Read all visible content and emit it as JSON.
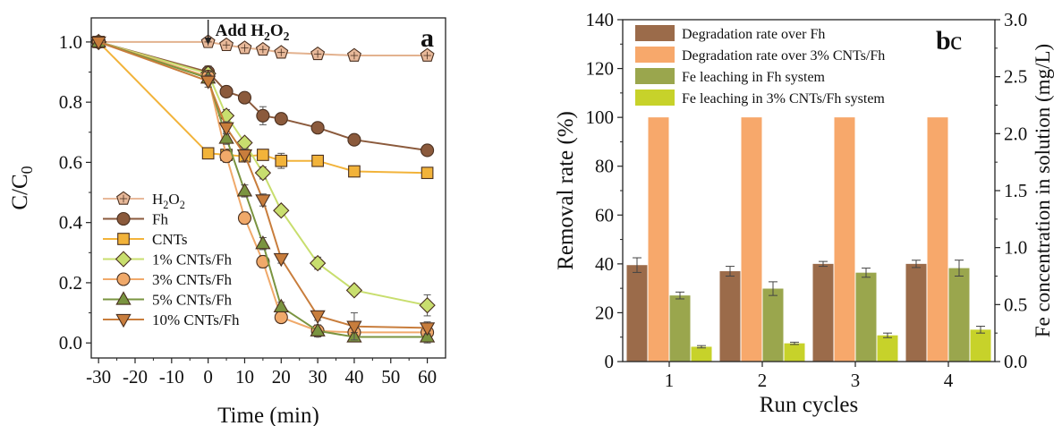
{
  "chart_data": [
    {
      "type": "line",
      "panel_label": "a",
      "annotation": "Add H2O2",
      "xlabel": "Time (min)",
      "ylabel": "C/C0",
      "xlim": [
        -32,
        65
      ],
      "ylim": [
        -0.05,
        1.08
      ],
      "x_ticks": [
        -30,
        -20,
        -10,
        0,
        10,
        20,
        30,
        40,
        50,
        60
      ],
      "y_ticks": [
        0.0,
        0.2,
        0.4,
        0.6,
        0.8,
        1.0
      ],
      "legend_placement": "bottom-left",
      "series": [
        {
          "name": "H2O2",
          "color": "#e8b99a",
          "marker": "pentagon",
          "points": [
            [
              -30,
              1.0
            ],
            [
              0,
              1.0
            ],
            [
              5,
              0.99
            ],
            [
              10,
              0.98
            ],
            [
              15,
              0.975
            ],
            [
              20,
              0.965
            ],
            [
              30,
              0.96
            ],
            [
              40,
              0.955
            ],
            [
              60,
              0.955
            ]
          ],
          "errors": [
            0,
            0,
            0.01,
            0.01,
            0.01,
            0.01,
            0.01,
            0.01,
            0.01
          ]
        },
        {
          "name": "Fh",
          "color": "#8b5a3c",
          "marker": "circle",
          "points": [
            [
              -30,
              1.0
            ],
            [
              0,
              0.9
            ],
            [
              5,
              0.835
            ],
            [
              10,
              0.815
            ],
            [
              15,
              0.755
            ],
            [
              20,
              0.745
            ],
            [
              30,
              0.715
            ],
            [
              40,
              0.675
            ],
            [
              60,
              0.64
            ]
          ],
          "errors": [
            0,
            0.02,
            0.01,
            0.01,
            0.03,
            0.015,
            0.01,
            0.01,
            0.01
          ]
        },
        {
          "name": "CNTs",
          "color": "#f2b33a",
          "marker": "square",
          "points": [
            [
              -30,
              1.0
            ],
            [
              0,
              0.63
            ],
            [
              5,
              0.625
            ],
            [
              10,
              0.62
            ],
            [
              15,
              0.625
            ],
            [
              20,
              0.605
            ],
            [
              30,
              0.605
            ],
            [
              40,
              0.57
            ],
            [
              60,
              0.565
            ]
          ],
          "errors": [
            0,
            0.01,
            0.01,
            0.01,
            0.015,
            0.025,
            0.01,
            0.01,
            0.015
          ]
        },
        {
          "name": "1% CNTs/Fh",
          "color": "#c8de6e",
          "marker": "diamond",
          "points": [
            [
              -30,
              1.0
            ],
            [
              0,
              0.895
            ],
            [
              5,
              0.755
            ],
            [
              10,
              0.665
            ],
            [
              15,
              0.565
            ],
            [
              20,
              0.44
            ],
            [
              30,
              0.265
            ],
            [
              40,
              0.175
            ],
            [
              60,
              0.125
            ]
          ],
          "errors": [
            0,
            0.02,
            0.02,
            0.015,
            0.02,
            0.015,
            0.02,
            0.015,
            0.035
          ]
        },
        {
          "name": "3% CNTs/Fh",
          "color": "#f0a96a",
          "marker": "circle",
          "points": [
            [
              -30,
              1.0
            ],
            [
              0,
              0.885
            ],
            [
              5,
              0.62
            ],
            [
              10,
              0.415
            ],
            [
              15,
              0.27
            ],
            [
              20,
              0.085
            ],
            [
              30,
              0.04
            ],
            [
              40,
              0.035
            ],
            [
              60,
              0.035
            ]
          ],
          "errors": [
            0,
            0.02,
            0.02,
            0.02,
            0.02,
            0.015,
            0.015,
            0.01,
            0.01
          ]
        },
        {
          "name": "5% CNTs/Fh",
          "color": "#7a9440",
          "marker": "triangle-up",
          "points": [
            [
              -30,
              1.0
            ],
            [
              0,
              0.88
            ],
            [
              5,
              0.68
            ],
            [
              10,
              0.505
            ],
            [
              15,
              0.33
            ],
            [
              20,
              0.12
            ],
            [
              30,
              0.04
            ],
            [
              40,
              0.02
            ],
            [
              60,
              0.02
            ]
          ],
          "errors": [
            0,
            0.02,
            0.02,
            0.02,
            0.02,
            0.015,
            0.02,
            0.015,
            0.02
          ]
        },
        {
          "name": "10% CNTs/Fh",
          "color": "#c87d3c",
          "marker": "triangle-down",
          "points": [
            [
              -30,
              1.0
            ],
            [
              0,
              0.87
            ],
            [
              5,
              0.715
            ],
            [
              10,
              0.625
            ],
            [
              15,
              0.475
            ],
            [
              20,
              0.28
            ],
            [
              30,
              0.09
            ],
            [
              40,
              0.055
            ],
            [
              60,
              0.05
            ]
          ],
          "errors": [
            0,
            0.02,
            0.02,
            0.02,
            0.02,
            0.015,
            0.015,
            0.045,
            0.02
          ]
        }
      ]
    },
    {
      "type": "bar",
      "panel_label": "b",
      "panel_label_overlap": "c",
      "xlabel": "Run cycles",
      "ylabel_left": "Removal rate (%)",
      "ylabel_right": "Fe concentration in solution (mg/L)",
      "categories": [
        "1",
        "2",
        "3",
        "4"
      ],
      "ylim_left": [
        0,
        140
      ],
      "y_ticks_left": [
        0,
        20,
        40,
        60,
        80,
        100,
        120,
        140
      ],
      "ylim_right": [
        0,
        3.0
      ],
      "y_ticks_right": [
        "0.0",
        "0.5",
        "1.0",
        "1.5",
        "2.0",
        "2.5",
        "3.0"
      ],
      "legend_placement": "top-left",
      "series": [
        {
          "name": "Degradation rate over Fh",
          "axis": "left",
          "color": "#9b6b4a",
          "values": [
            39.5,
            37.0,
            40.0,
            40.0
          ],
          "errors": [
            3.0,
            2.0,
            1.0,
            1.5
          ]
        },
        {
          "name": "Degradation rate over 3% CNTs/Fh",
          "axis": "left",
          "color": "#f7a86b",
          "values": [
            100,
            100,
            100,
            100
          ],
          "errors": [
            0,
            0,
            0,
            0
          ]
        },
        {
          "name": "Fe leaching in Fh system",
          "axis": "right",
          "color": "#9aa64d",
          "values": [
            0.58,
            0.64,
            0.78,
            0.82
          ],
          "errors": [
            0.03,
            0.06,
            0.04,
            0.07
          ]
        },
        {
          "name": "Fe leaching in 3% CNTs/Fh system",
          "axis": "right",
          "color": "#c7d22a",
          "values": [
            0.13,
            0.16,
            0.23,
            0.28
          ],
          "errors": [
            0.01,
            0.01,
            0.02,
            0.03
          ]
        }
      ]
    }
  ]
}
